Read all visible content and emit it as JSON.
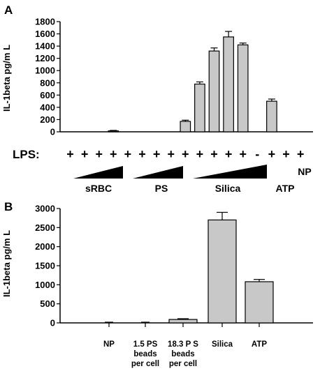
{
  "panel_labels": [
    "A",
    "B"
  ],
  "chart_data": [
    {
      "type": "bar",
      "panel": "A",
      "ylabel": "IL-1beta pg/m L",
      "ylim": [
        0,
        1800
      ],
      "yticks": [
        0,
        200,
        400,
        600,
        800,
        1000,
        1200,
        1400,
        1600,
        1800
      ],
      "grid": false,
      "values": [
        0,
        0,
        0,
        15,
        0,
        0,
        0,
        0,
        170,
        780,
        1320,
        1550,
        1420,
        0,
        500,
        0,
        0
      ],
      "errors": [
        0,
        0,
        0,
        8,
        0,
        0,
        0,
        0,
        20,
        35,
        50,
        90,
        30,
        0,
        35,
        0,
        0
      ],
      "bar_color": "#c8c8c8",
      "lps_label": "LPS:",
      "lps_signs": [
        "+",
        "+",
        "+",
        "+",
        "+",
        "+",
        "+",
        "+",
        "+",
        "+",
        "+",
        "+",
        "+",
        "-",
        "+",
        "+",
        "+"
      ],
      "group_labels": [
        "sRBC",
        "PS",
        "Silica",
        "ATP",
        "NP"
      ]
    },
    {
      "type": "bar",
      "panel": "B",
      "ylabel": "IL-1beta pg/m L",
      "ylim": [
        0,
        3000
      ],
      "yticks": [
        0,
        500,
        1000,
        1500,
        2000,
        2500,
        3000
      ],
      "grid": false,
      "categories": [
        [
          "NP"
        ],
        [
          "1.5 PS",
          "beads",
          "per cell"
        ],
        [
          "18.3 P S",
          "beads",
          "per cell"
        ],
        [
          "Silica"
        ],
        [
          "ATP"
        ]
      ],
      "values": [
        0,
        0,
        90,
        2700,
        1080
      ],
      "errors": [
        0,
        0,
        20,
        200,
        60
      ],
      "bar_color": "#c8c8c8"
    }
  ]
}
